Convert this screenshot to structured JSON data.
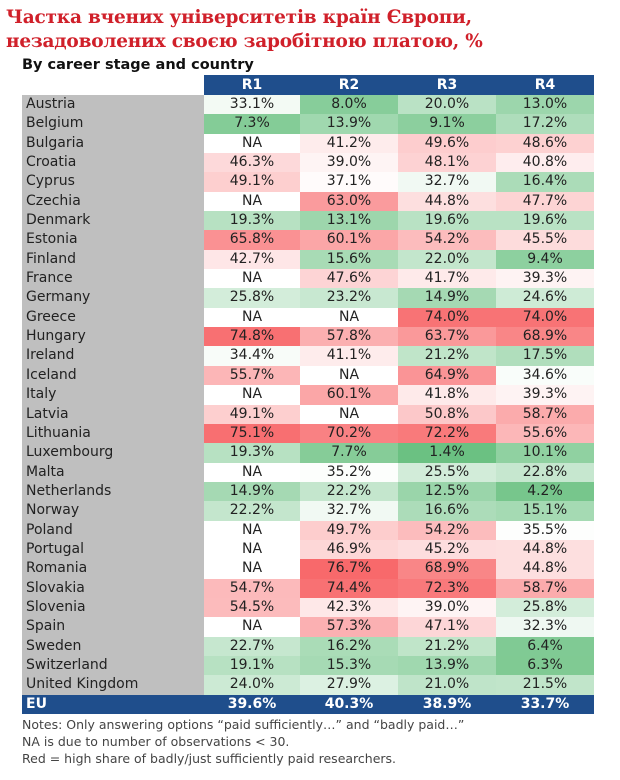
{
  "title": "Частка вчених університетів країн Європи, незадоволених своєю заробітною платою, %",
  "subtitle": "By career stage and country",
  "chart_data": {
    "type": "heatmap",
    "title": "Частка вчених університетів країн Європи, незадоволених своєю заробітною платою, %",
    "subtitle": "By career stage and country",
    "columns": [
      "R1",
      "R2",
      "R3",
      "R4"
    ],
    "color_scale": {
      "low": "#63be7b",
      "mid": "#ffffff",
      "high": "#f8696b"
    },
    "rows": [
      {
        "country": "Austria",
        "values": [
          "33.1%",
          "8.0%",
          "20.0%",
          "13.0%"
        ]
      },
      {
        "country": "Belgium",
        "values": [
          "7.3%",
          "13.9%",
          "9.1%",
          "17.2%"
        ]
      },
      {
        "country": "Bulgaria",
        "values": [
          "NA",
          "41.2%",
          "49.6%",
          "48.6%"
        ]
      },
      {
        "country": "Croatia",
        "values": [
          "46.3%",
          "39.0%",
          "48.1%",
          "40.8%"
        ]
      },
      {
        "country": "Cyprus",
        "values": [
          "49.1%",
          "37.1%",
          "32.7%",
          "16.4%"
        ]
      },
      {
        "country": "Czechia",
        "values": [
          "NA",
          "63.0%",
          "44.8%",
          "47.7%"
        ]
      },
      {
        "country": "Denmark",
        "values": [
          "19.3%",
          "13.1%",
          "19.6%",
          "19.6%"
        ]
      },
      {
        "country": "Estonia",
        "values": [
          "65.8%",
          "60.1%",
          "54.2%",
          "45.5%"
        ]
      },
      {
        "country": "Finland",
        "values": [
          "42.7%",
          "15.6%",
          "22.0%",
          "9.4%"
        ]
      },
      {
        "country": "France",
        "values": [
          "NA",
          "47.6%",
          "41.7%",
          "39.3%"
        ]
      },
      {
        "country": "Germany",
        "values": [
          "25.8%",
          "23.2%",
          "14.9%",
          "24.6%"
        ]
      },
      {
        "country": "Greece",
        "values": [
          "NA",
          "NA",
          "74.0%",
          "74.0%"
        ]
      },
      {
        "country": "Hungary",
        "values": [
          "74.8%",
          "57.8%",
          "63.7%",
          "68.9%"
        ]
      },
      {
        "country": "Ireland",
        "values": [
          "34.4%",
          "41.1%",
          "21.2%",
          "17.5%"
        ]
      },
      {
        "country": "Iceland",
        "values": [
          "55.7%",
          "NA",
          "64.9%",
          "34.6%"
        ]
      },
      {
        "country": "Italy",
        "values": [
          "NA",
          "60.1%",
          "41.8%",
          "39.3%"
        ]
      },
      {
        "country": "Latvia",
        "values": [
          "49.1%",
          "NA",
          "50.8%",
          "58.7%"
        ]
      },
      {
        "country": "Lithuania",
        "values": [
          "75.1%",
          "70.2%",
          "72.2%",
          "55.6%"
        ]
      },
      {
        "country": "Luxembourg",
        "values": [
          "19.3%",
          "7.7%",
          "1.4%",
          "10.1%"
        ]
      },
      {
        "country": "Malta",
        "values": [
          "NA",
          "35.2%",
          "25.5%",
          "22.8%"
        ]
      },
      {
        "country": "Netherlands",
        "values": [
          "14.9%",
          "22.2%",
          "12.5%",
          "4.2%"
        ]
      },
      {
        "country": "Norway",
        "values": [
          "22.2%",
          "32.7%",
          "16.6%",
          "15.1%"
        ]
      },
      {
        "country": "Poland",
        "values": [
          "NA",
          "49.7%",
          "54.2%",
          "35.5%"
        ]
      },
      {
        "country": "Portugal",
        "values": [
          "NA",
          "46.9%",
          "45.2%",
          "44.8%"
        ]
      },
      {
        "country": "Romania",
        "values": [
          "NA",
          "76.7%",
          "68.9%",
          "44.8%"
        ]
      },
      {
        "country": "Slovakia",
        "values": [
          "54.7%",
          "74.4%",
          "72.3%",
          "58.7%"
        ]
      },
      {
        "country": "Slovenia",
        "values": [
          "54.5%",
          "42.3%",
          "39.0%",
          "25.8%"
        ]
      },
      {
        "country": "Spain",
        "values": [
          "NA",
          "57.3%",
          "47.1%",
          "32.3%"
        ]
      },
      {
        "country": "Sweden",
        "values": [
          "22.7%",
          "16.2%",
          "21.2%",
          "6.4%"
        ]
      },
      {
        "country": "Switzerland",
        "values": [
          "19.1%",
          "15.3%",
          "13.9%",
          "6.3%"
        ]
      },
      {
        "country": "United Kingdom",
        "values": [
          "24.0%",
          "27.9%",
          "21.0%",
          "21.5%"
        ]
      }
    ],
    "total_row": {
      "country": "EU",
      "values": [
        "39.6%",
        "40.3%",
        "38.9%",
        "33.7%"
      ]
    }
  },
  "notes": [
    "Notes: Only answering options “paid sufficiently…” and “badly paid…”",
    "NA is due to number of observations < 30.",
    "Red = high share of badly/just sufficiently paid researchers."
  ]
}
